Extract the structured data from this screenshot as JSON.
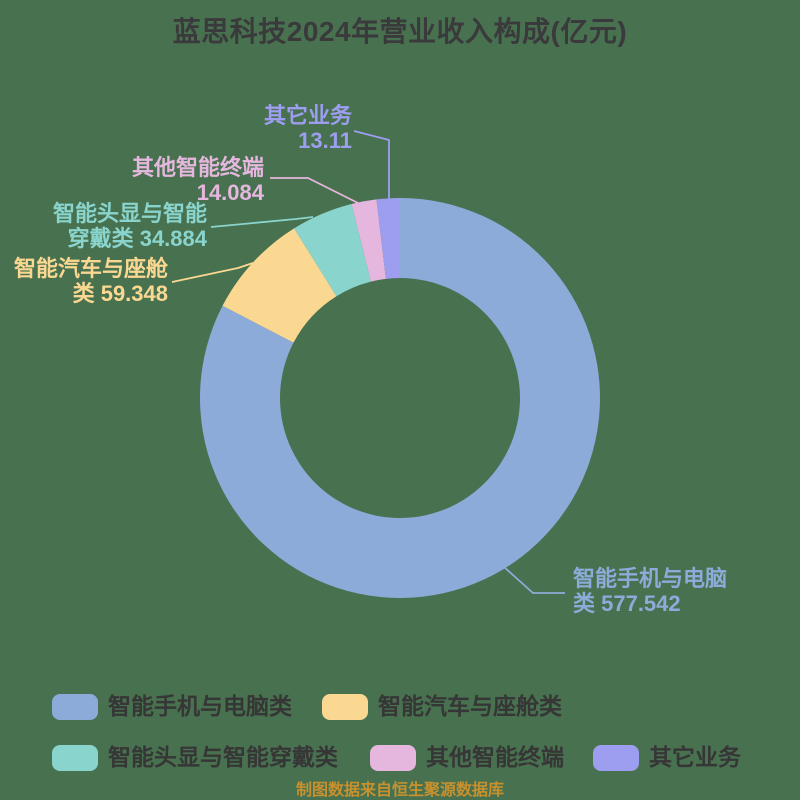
{
  "title": "蓝思科技2024年营业收入构成(亿元)",
  "footer": "制图数据来自恒生聚源数据库",
  "colors": {
    "background": "#48714F",
    "title_text": "#3A3A3C",
    "legend_text": "#363636",
    "footer_text": "#C6912E"
  },
  "chart_data": {
    "type": "pie",
    "donut": true,
    "title": "蓝思科技2024年营业收入构成(亿元)",
    "unit": "亿元",
    "start_angle_deg": 0,
    "direction": "clockwise-from-top",
    "legend_position": "bottom",
    "total": 698.968,
    "slices": [
      {
        "name": "智能手机与电脑类",
        "value": 577.542,
        "color": "#8CABD9",
        "label_line1": "智能手机与电脑",
        "label_line2": "类 577.542"
      },
      {
        "name": "智能汽车与座舱类",
        "value": 59.348,
        "color": "#FBD892",
        "label_line1": "智能汽车与座舱",
        "label_line2": "类 59.348"
      },
      {
        "name": "智能头显与智能穿戴类",
        "value": 34.884,
        "color": "#8AD4CE",
        "label_line1": "智能头显与智能",
        "label_line2": "穿戴类 34.884"
      },
      {
        "name": "其他智能终端",
        "value": 14.084,
        "color": "#E5B7DE",
        "label_line1": "其他智能终端",
        "label_line2": "14.084"
      },
      {
        "name": "其它业务",
        "value": 13.11,
        "color": "#9E9EF0",
        "label_line1": "其它业务",
        "label_line2": "13.11"
      }
    ]
  }
}
